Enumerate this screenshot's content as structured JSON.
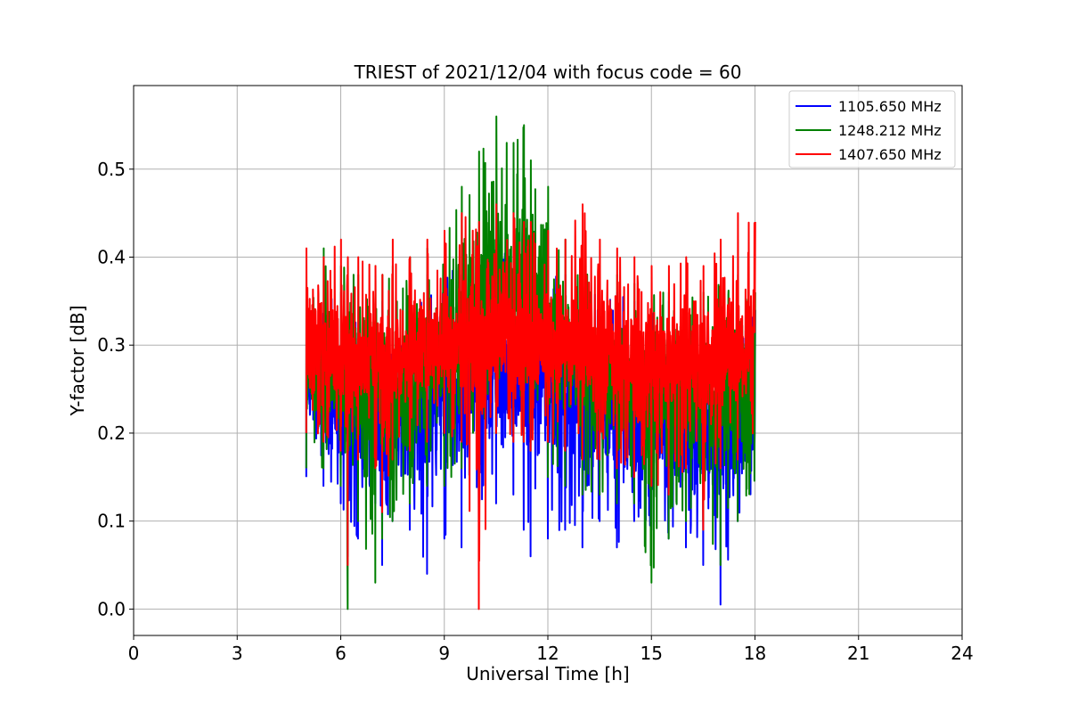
{
  "chart_data": {
    "type": "line",
    "title": "TRIEST of 2021/12/04 with focus code = 60",
    "xlabel": "Universal Time [h]",
    "ylabel": "Y-factor [dB]",
    "xlim": [
      0,
      24
    ],
    "ylim": [
      -0.03,
      0.595
    ],
    "xticks": [
      0,
      3,
      6,
      9,
      12,
      15,
      18,
      21,
      24
    ],
    "xtick_labels": [
      "0",
      "3",
      "6",
      "9",
      "12",
      "15",
      "18",
      "21",
      "24"
    ],
    "yticks": [
      0.0,
      0.1,
      0.2,
      0.3,
      0.4,
      0.5
    ],
    "ytick_labels": [
      "0.0",
      "0.1",
      "0.2",
      "0.3",
      "0.4",
      "0.5"
    ],
    "grid": true,
    "legend_position": "top-right",
    "x": [
      5.0,
      5.5,
      6.0,
      6.2,
      6.5,
      7.0,
      7.2,
      7.5,
      8.0,
      8.5,
      9.0,
      9.5,
      10.0,
      10.5,
      11.0,
      11.3,
      11.5,
      12.0,
      12.5,
      13.0,
      13.5,
      14.0,
      14.5,
      15.0,
      15.5,
      16.0,
      16.5,
      17.0,
      17.5,
      18.0
    ],
    "series": [
      {
        "name": "1105.650 MHz",
        "color": "#0000ff",
        "values": [
          0.26,
          0.24,
          0.22,
          0.2,
          0.21,
          0.23,
          0.19,
          0.21,
          0.22,
          0.24,
          0.25,
          0.24,
          0.27,
          0.26,
          0.27,
          0.28,
          0.26,
          0.25,
          0.24,
          0.23,
          0.22,
          0.21,
          0.2,
          0.21,
          0.2,
          0.21,
          0.2,
          0.19,
          0.2,
          0.21
        ],
        "min": [
          0.15,
          0.14,
          0.12,
          0.06,
          0.08,
          0.12,
          0.05,
          0.1,
          0.09,
          0.04,
          0.08,
          0.07,
          0.1,
          0.12,
          0.13,
          0.09,
          0.06,
          0.08,
          0.09,
          0.07,
          0.1,
          0.07,
          0.1,
          0.09,
          0.08,
          0.07,
          0.05,
          0.005,
          0.1,
          0.13
        ],
        "max": [
          0.36,
          0.35,
          0.36,
          0.36,
          0.34,
          0.35,
          0.35,
          0.36,
          0.37,
          0.38,
          0.39,
          0.38,
          0.4,
          0.4,
          0.41,
          0.41,
          0.4,
          0.39,
          0.38,
          0.37,
          0.36,
          0.36,
          0.35,
          0.35,
          0.35,
          0.34,
          0.34,
          0.34,
          0.35,
          0.34
        ]
      },
      {
        "name": "1248.212 MHz",
        "color": "#008000",
        "values": [
          0.27,
          0.26,
          0.25,
          0.24,
          0.24,
          0.25,
          0.23,
          0.24,
          0.25,
          0.27,
          0.29,
          0.31,
          0.35,
          0.36,
          0.37,
          0.38,
          0.35,
          0.32,
          0.3,
          0.28,
          0.27,
          0.26,
          0.25,
          0.24,
          0.24,
          0.25,
          0.24,
          0.24,
          0.25,
          0.25
        ],
        "min": [
          0.16,
          0.16,
          0.14,
          0.0,
          0.1,
          0.03,
          0.08,
          0.1,
          0.12,
          0.14,
          0.14,
          0.16,
          0.18,
          0.2,
          0.2,
          0.19,
          0.18,
          0.15,
          0.14,
          0.13,
          0.13,
          0.12,
          0.12,
          0.03,
          0.08,
          0.1,
          0.1,
          0.05,
          0.1,
          0.12
        ],
        "max": [
          0.38,
          0.41,
          0.39,
          0.39,
          0.38,
          0.39,
          0.38,
          0.39,
          0.4,
          0.41,
          0.42,
          0.48,
          0.52,
          0.56,
          0.53,
          0.55,
          0.51,
          0.48,
          0.42,
          0.4,
          0.39,
          0.38,
          0.37,
          0.36,
          0.36,
          0.36,
          0.36,
          0.37,
          0.38,
          0.36
        ]
      },
      {
        "name": "1407.650 MHz",
        "color": "#ff0000",
        "values": [
          0.3,
          0.29,
          0.29,
          0.28,
          0.28,
          0.29,
          0.27,
          0.28,
          0.29,
          0.3,
          0.3,
          0.3,
          0.3,
          0.31,
          0.3,
          0.31,
          0.3,
          0.3,
          0.3,
          0.29,
          0.29,
          0.29,
          0.28,
          0.28,
          0.28,
          0.28,
          0.28,
          0.28,
          0.29,
          0.3
        ],
        "min": [
          0.2,
          0.19,
          0.18,
          0.05,
          0.17,
          0.16,
          0.11,
          0.17,
          0.18,
          0.19,
          0.2,
          0.19,
          0.0,
          0.2,
          0.19,
          0.19,
          0.18,
          0.19,
          0.18,
          0.17,
          0.17,
          0.16,
          0.15,
          0.14,
          0.13,
          0.16,
          0.09,
          0.16,
          0.17,
          0.2
        ],
        "max": [
          0.41,
          0.4,
          0.42,
          0.4,
          0.4,
          0.39,
          0.38,
          0.42,
          0.4,
          0.42,
          0.43,
          0.45,
          0.44,
          0.46,
          0.45,
          0.44,
          0.44,
          0.43,
          0.42,
          0.46,
          0.42,
          0.41,
          0.4,
          0.39,
          0.39,
          0.4,
          0.39,
          0.42,
          0.45,
          0.44
        ]
      }
    ]
  }
}
